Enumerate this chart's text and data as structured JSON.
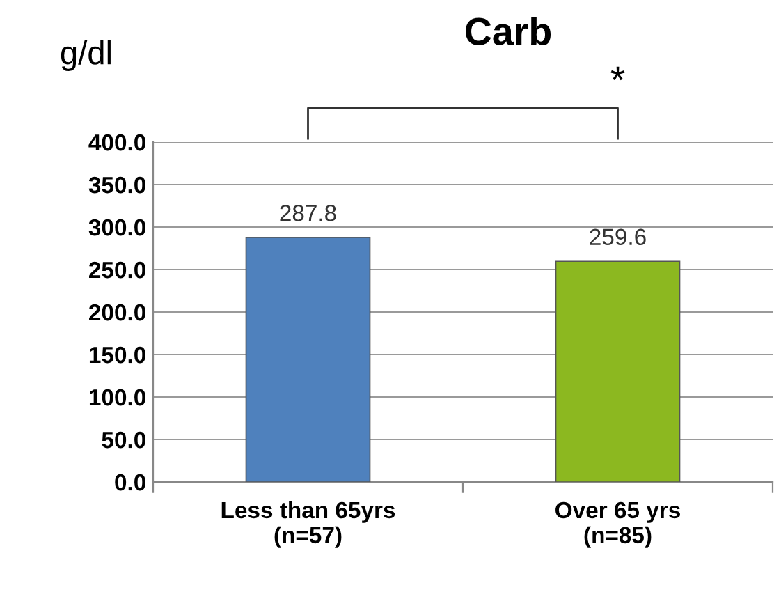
{
  "chart_data": {
    "type": "bar",
    "title": "Carb",
    "ylabel": "g/dl",
    "categories": [
      "Less than 65yrs\n(n=57)",
      "Over 65 yrs\n(n=85)"
    ],
    "values": [
      287.8,
      259.6
    ],
    "colors": [
      "#4f81bd",
      "#8cb820"
    ],
    "ylim": [
      0,
      400
    ],
    "yticks": [
      {
        "value": 0,
        "label": "0.0"
      },
      {
        "value": 50,
        "label": "50.0"
      },
      {
        "value": 100,
        "label": "100.0"
      },
      {
        "value": 150,
        "label": "150.0"
      },
      {
        "value": 200,
        "label": "200.0"
      },
      {
        "value": 250,
        "label": "250.0"
      },
      {
        "value": 300,
        "label": "300.0"
      },
      {
        "value": 350,
        "label": "350.0"
      },
      {
        "value": 400,
        "label": "400.0"
      }
    ],
    "grid": "y",
    "data_labels": true,
    "legend": false,
    "annotations": [
      "*"
    ]
  }
}
